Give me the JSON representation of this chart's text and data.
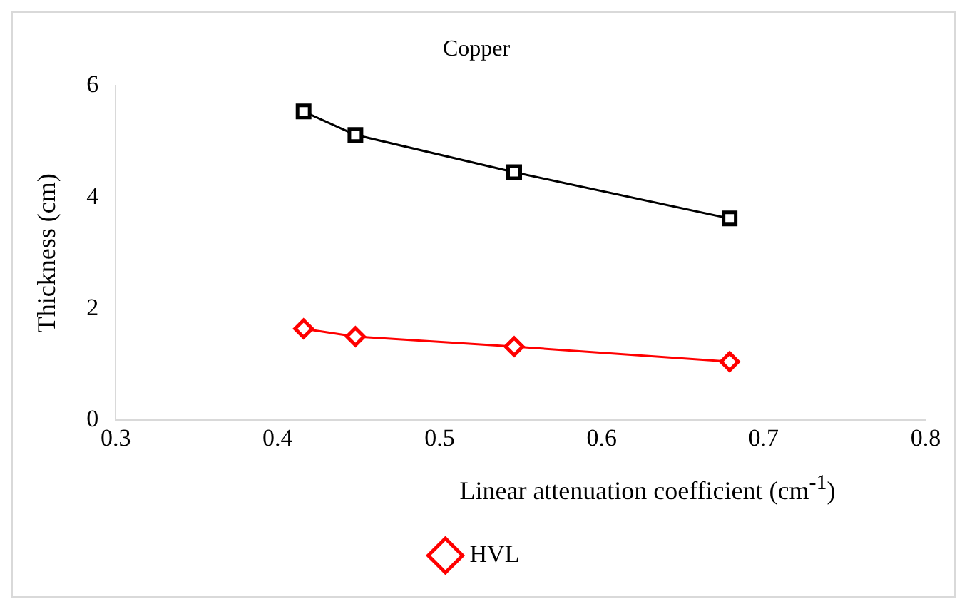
{
  "chart_data": {
    "type": "line",
    "title": "Copper",
    "xlabel": "Linear attenuation coefficient (cm$^{-1}$)",
    "ylabel": "Thickness (cm)",
    "x": [
      0.416,
      0.448,
      0.546,
      0.679
    ],
    "series": [
      {
        "color": "#000000",
        "marker": "square",
        "values": [
          5.54,
          5.12,
          4.45,
          3.62
        ]
      },
      {
        "name": "HVL",
        "color": "#ff0000",
        "marker": "diamond",
        "values": [
          1.64,
          1.5,
          1.32,
          1.05
        ]
      }
    ],
    "xlim": [
      0.3,
      0.8
    ],
    "xticks": [
      0.3,
      0.4,
      0.5,
      0.6,
      0.7,
      0.8
    ],
    "ylim": [
      0,
      6
    ],
    "yticks": [
      0,
      2,
      4,
      6
    ],
    "grid": false,
    "legend": "bottom",
    "line_style": "solid"
  }
}
